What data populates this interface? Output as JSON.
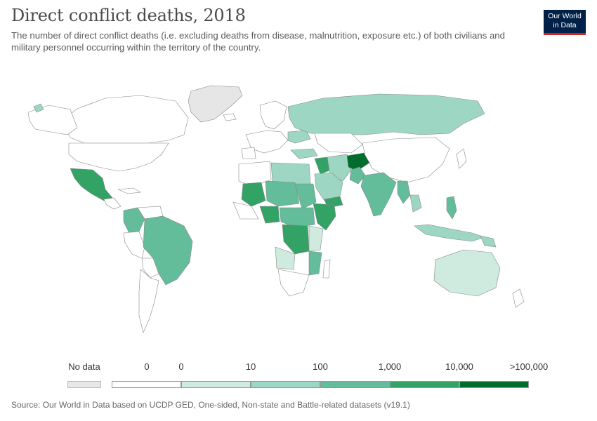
{
  "title": "Direct conflict deaths, 2018",
  "subtitle": "The number of direct conflict deaths (i.e. excluding deaths from disease, malnutrition, exposure etc.) of both civilians and military personnel occurring within the territory of the country.",
  "logo": {
    "line1": "Our World",
    "line2": "in Data"
  },
  "legend": {
    "nodata_label": "No data",
    "zero_label": "0",
    "bins": [
      {
        "label": "0",
        "color": "#ffffff"
      },
      {
        "label": "10",
        "color": "#cfebe0"
      },
      {
        "label": "100",
        "color": "#9dd7c4"
      },
      {
        "label": "1,000",
        "color": "#63bd9b"
      },
      {
        "label": "10,000",
        "color": "#32a265"
      },
      {
        "label": ">100,000",
        "color": "#006d2c"
      }
    ],
    "end_label": ">100,000",
    "nodata_color": "#e8e8e8"
  },
  "map_colors": {
    "no_data": "#e6e6e6",
    "zero": "#ffffff",
    "b1": "#cfebe0",
    "b2": "#9dd7c4",
    "b3": "#63bd9b",
    "b4": "#32a265",
    "b5": "#006d2c",
    "border": "#888888"
  },
  "source": "Source: Our World in Data based on UCDP GED, One-sided, Non-state and Battle-related datasets (v19.1)"
}
